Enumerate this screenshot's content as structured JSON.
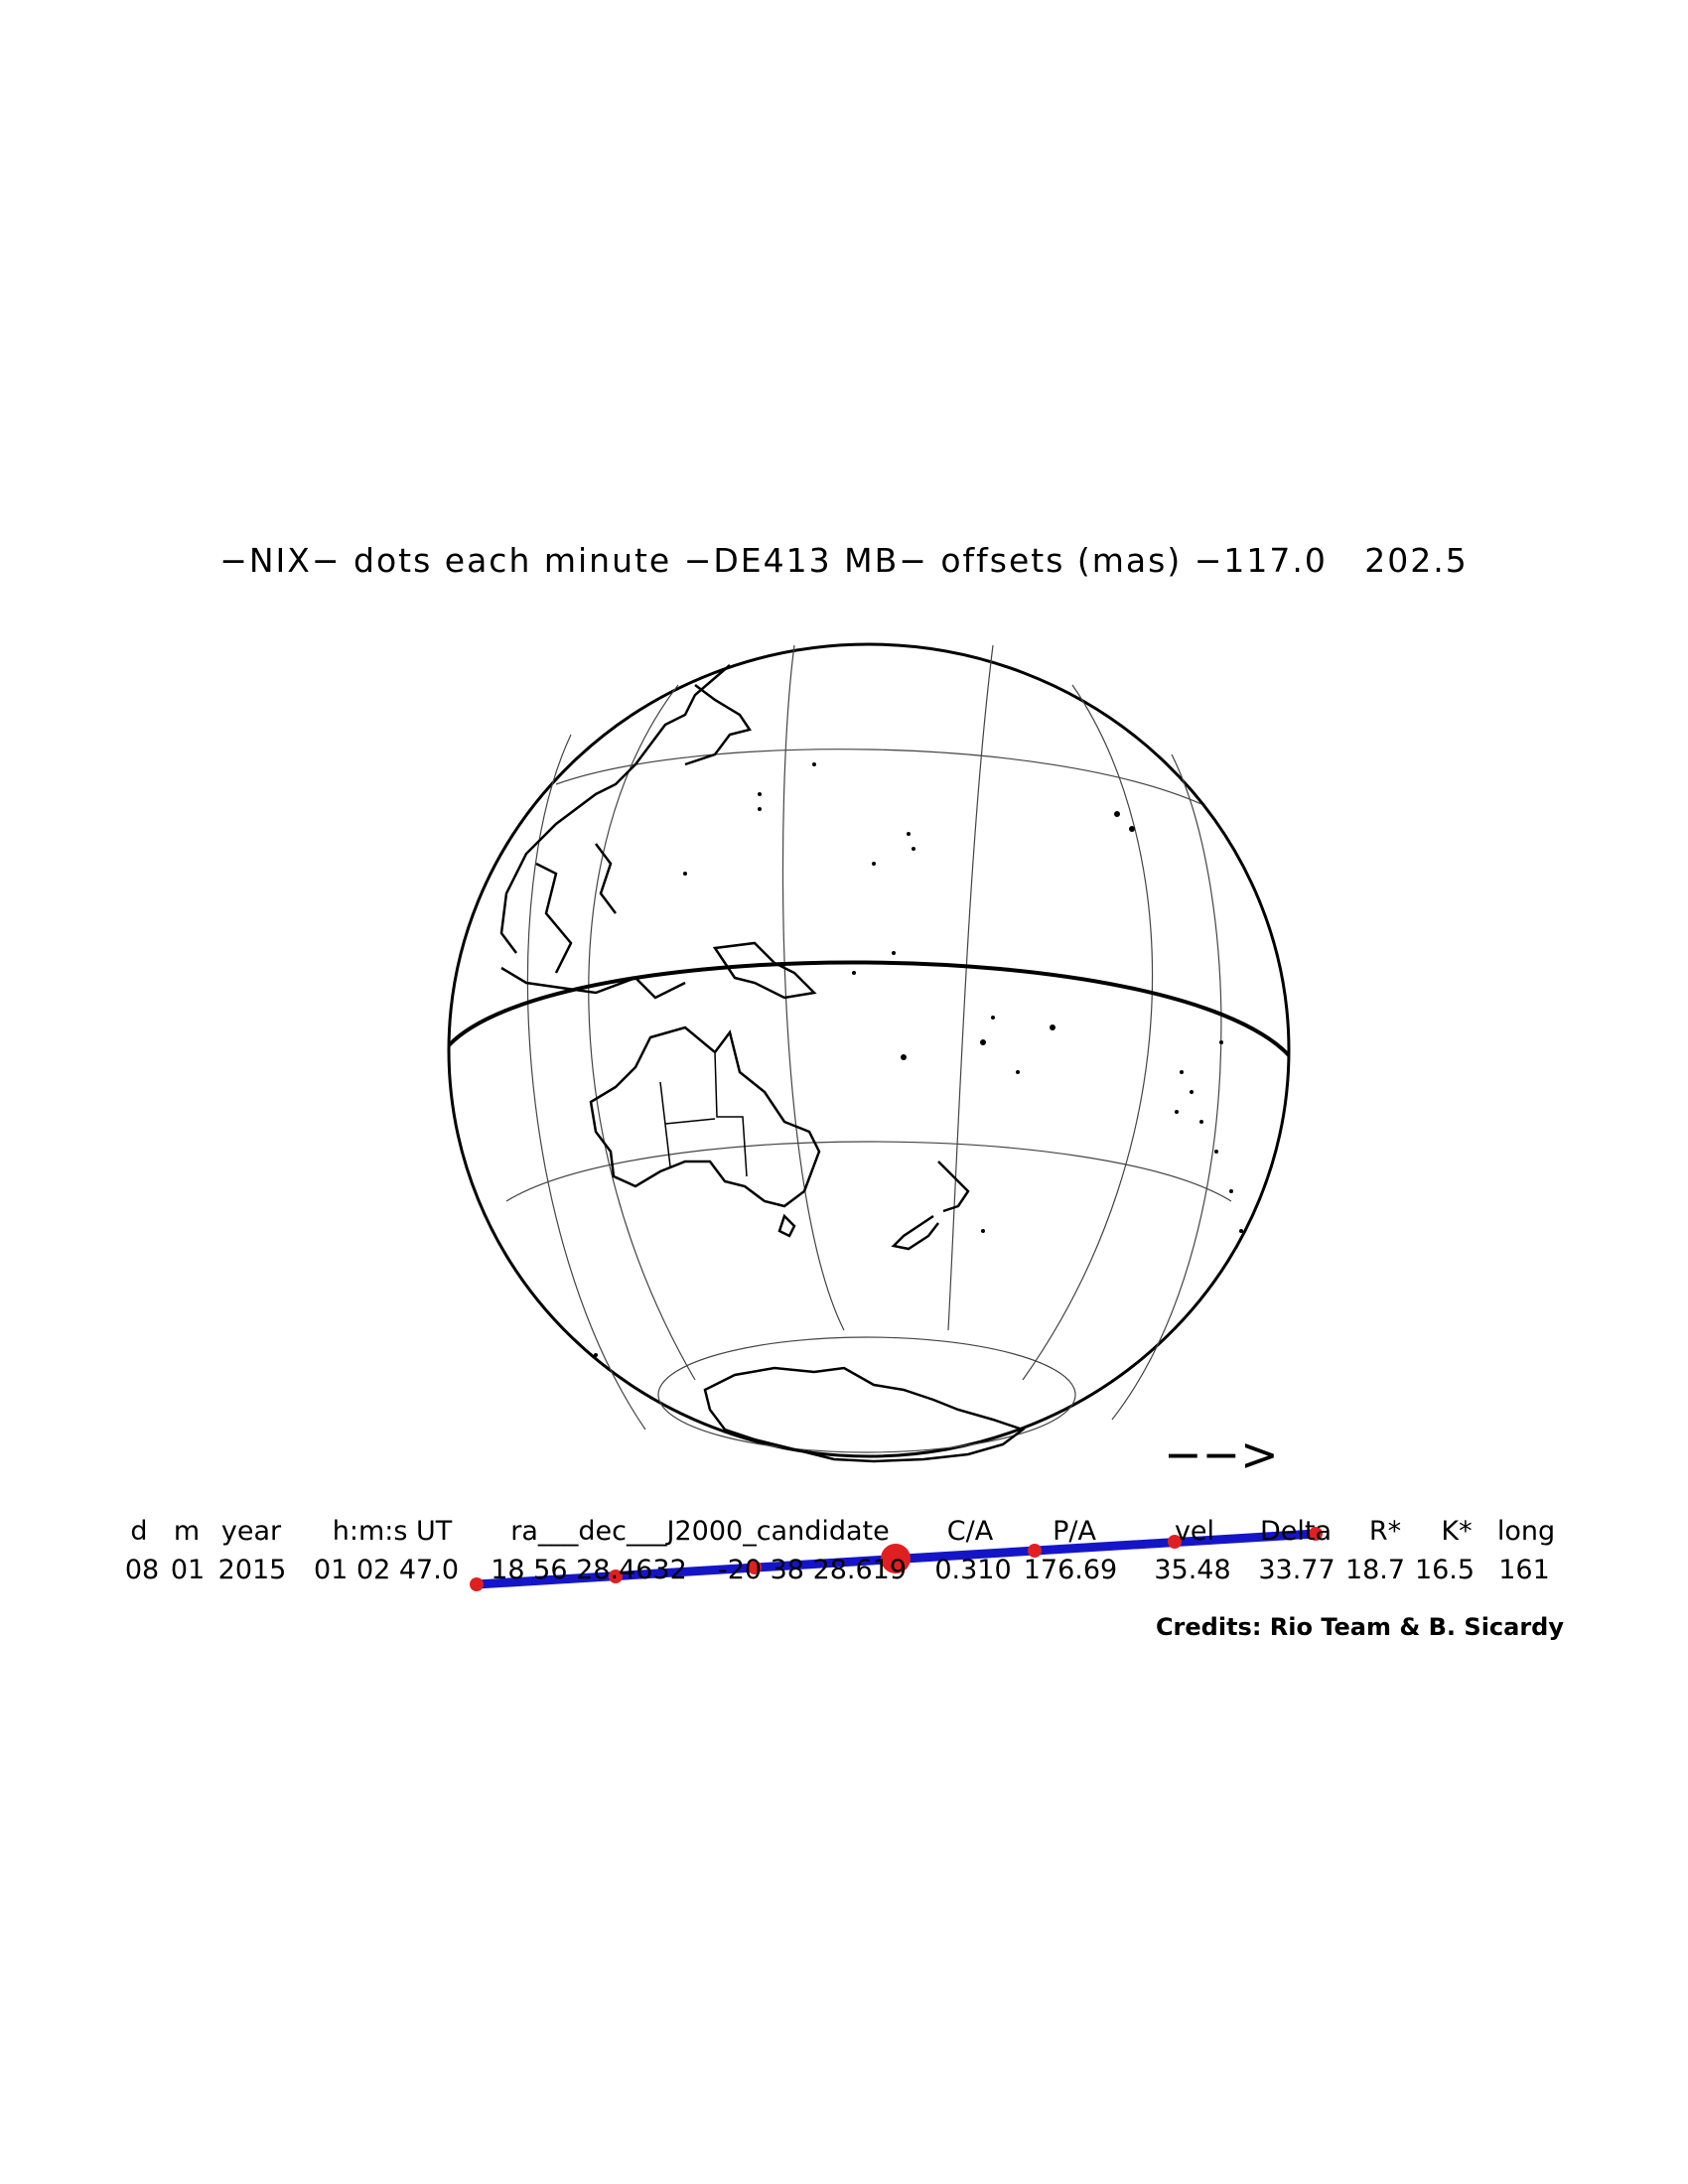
{
  "title": "−NIX− dots each minute −DE413 MB− offsets (mas) −117.0   202.5",
  "table": {
    "headers": [
      "d",
      "m",
      "year",
      "h:m:s UT",
      "ra___dec___J2000_candidate",
      "C/A",
      "P/A",
      "vel",
      "Delta",
      "R*",
      "K*",
      "long"
    ],
    "values": [
      "08",
      "01",
      "2015",
      "01 02 47.0",
      "18 56 28.4632",
      "-20 38 28.619",
      "0.310",
      "176.69",
      "35.48",
      "33.77",
      "18.7",
      "16.5",
      "161"
    ]
  },
  "credits": "Credits: Rio Team & B. Sicardy",
  "colors": {
    "path": "#1515c8",
    "dots": "#e02020",
    "outline": "#000000"
  },
  "direction_arrow": "−−>"
}
